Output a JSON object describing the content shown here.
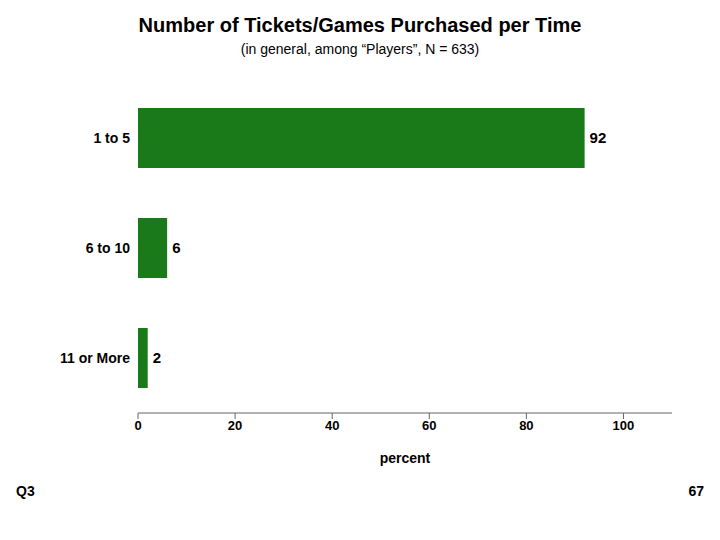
{
  "chart_data": {
    "type": "bar",
    "orientation": "horizontal",
    "title": "Number of Tickets/Games Purchased per Time",
    "subtitle": "(in general, among “Players”, N = 633)",
    "categories": [
      "11 or More",
      "6 to 10",
      "1 to 5"
    ],
    "values": [
      2,
      6,
      92
    ],
    "color": "#1a7a1a",
    "xlabel": "percent",
    "xlim": [
      0,
      110
    ],
    "xticks": [
      0,
      20,
      40,
      60,
      80,
      100
    ],
    "data_labels": true,
    "annotations": [
      "Q3",
      "67"
    ]
  }
}
